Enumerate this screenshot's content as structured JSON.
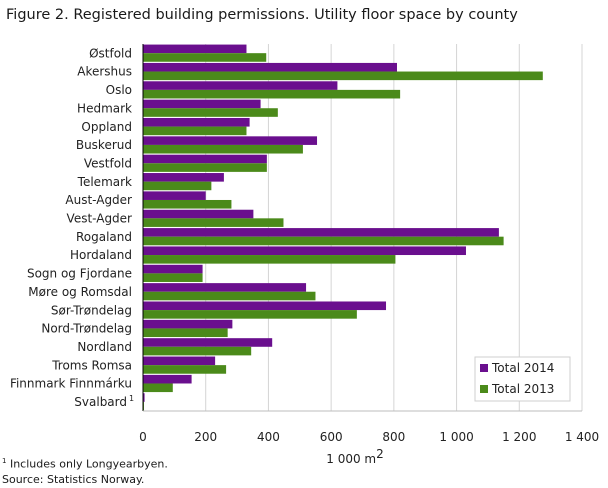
{
  "figure": {
    "title": "Figure 2. Registered building permissions. Utility floor space by county",
    "footnote_marker": "1",
    "footnote_text": "Includes only Longyearbyen.",
    "source": "Source: Statistics Norway."
  },
  "chart_data": {
    "type": "bar",
    "orientation": "horizontal",
    "title": "Figure 2. Registered building permissions. Utility floor space by county",
    "xlabel": "1 000 m",
    "xlabel_superscript": "2",
    "xlim": [
      0,
      1400
    ],
    "xticks": [
      0,
      200,
      400,
      600,
      800,
      1000,
      1200,
      1400
    ],
    "xtick_labels": [
      "0",
      "200",
      "400",
      "600",
      "800",
      "1 000",
      "1 200",
      "1 400"
    ],
    "grid": "vertical",
    "legend_position": "bottom-right",
    "categories": [
      "Østfold",
      "Akershus",
      "Oslo",
      "Hedmark",
      "Oppland",
      "Buskerud",
      "Vestfold",
      "Telemark",
      "Aust-Agder",
      "Vest-Agder",
      "Rogaland",
      "Hordaland",
      "Sogn og Fjordane",
      "Møre og Romsdal",
      "Sør-Trøndelag",
      "Nord-Trøndelag",
      "Nordland",
      "Troms Romsa",
      "Finnmark Finnmárku",
      "Svalbard"
    ],
    "category_superscripts": {
      "Svalbard": "1"
    },
    "series": [
      {
        "name": "Total 2014",
        "color": "#6a0f8e",
        "values": [
          330,
          810,
          620,
          375,
          340,
          555,
          395,
          258,
          200,
          352,
          1135,
          1030,
          190,
          520,
          775,
          285,
          412,
          230,
          155,
          5
        ]
      },
      {
        "name": "Total 2013",
        "color": "#4b8a1a",
        "values": [
          393,
          1275,
          820,
          430,
          330,
          510,
          395,
          218,
          282,
          448,
          1150,
          805,
          190,
          550,
          682,
          270,
          345,
          265,
          95,
          3
        ]
      }
    ]
  }
}
